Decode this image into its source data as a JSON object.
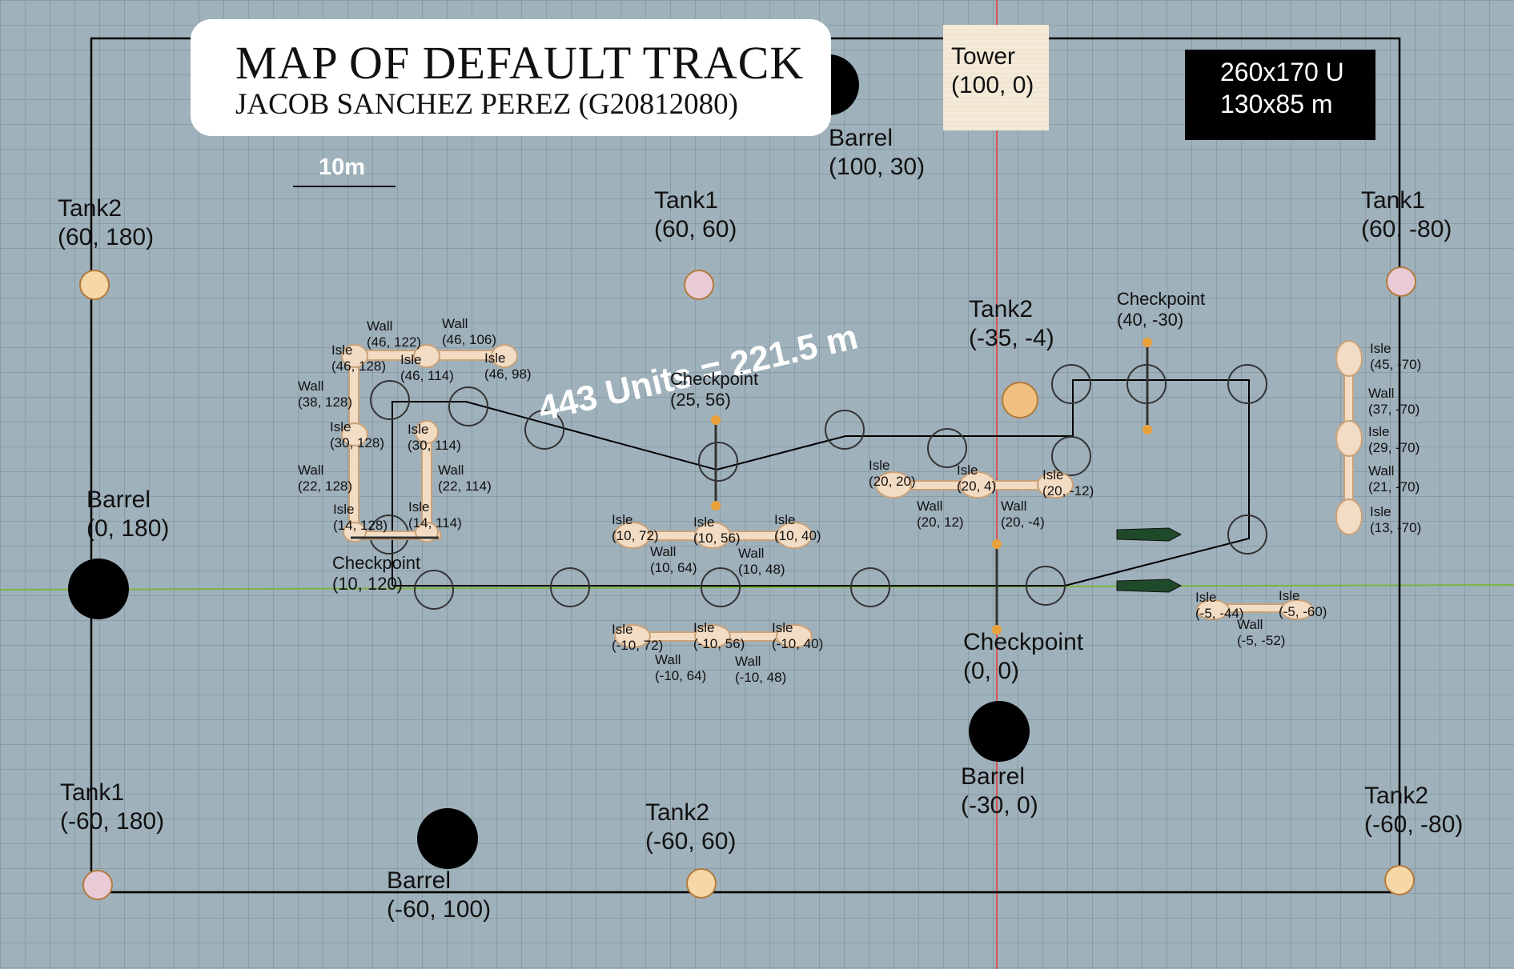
{
  "title": {
    "main": "MAP OF DEFAULT TRACK",
    "author": "JACOB SANCHEZ PEREZ (G20812080)"
  },
  "dimensions": {
    "units": "260x170 U",
    "meters": "130x85 m"
  },
  "scale_bar": "10m",
  "track_length": "443 Units = 221.5 m",
  "colors": {
    "background": "#9fb1bb",
    "grid": "#7e929c",
    "axis_red": "#d9534f",
    "axis_green": "#7cb342",
    "barrel": "#000000",
    "isle": "#f2dcc4",
    "label_white": "#ffffff"
  },
  "tower": {
    "name": "Tower",
    "coord": "(100, 0)"
  },
  "tanks": [
    {
      "name": "Tank2",
      "coord": "(60, 180)",
      "icon": "tank-icon"
    },
    {
      "name": "Tank1",
      "coord": "(60, 60)",
      "icon": "tank-icon"
    },
    {
      "name": "Tank1",
      "coord": "(60, -80)",
      "icon": "tank-icon"
    },
    {
      "name": "Tank2",
      "coord": "(-35, -4)",
      "icon": "tank-icon"
    },
    {
      "name": "Tank1",
      "coord": "(-60, 180)",
      "icon": "tank-icon"
    },
    {
      "name": "Tank2",
      "coord": "(-60, 60)",
      "icon": "tank-icon"
    },
    {
      "name": "Tank2",
      "coord": "(-60, -80)",
      "icon": "tank-icon"
    }
  ],
  "barrels": [
    {
      "name": "Barrel",
      "coord": "(100, 30)"
    },
    {
      "name": "Barrel",
      "coord": "(0, 180)"
    },
    {
      "name": "Barrel",
      "coord": "(-30, 0)"
    },
    {
      "name": "Barrel",
      "coord": "(-60, 100)"
    }
  ],
  "checkpoints": [
    {
      "name": "Checkpoint",
      "coord": "(25, 56)"
    },
    {
      "name": "Checkpoint",
      "coord": "(40, -30)"
    },
    {
      "name": "Checkpoint",
      "coord": "(10, 120)"
    },
    {
      "name": "Checkpoint",
      "coord": "(0, 0)"
    }
  ],
  "isles": [
    {
      "name": "Isle",
      "coord": "(46, 128)"
    },
    {
      "name": "Isle",
      "coord": "(46, 114)"
    },
    {
      "name": "Isle",
      "coord": "(46, 98)"
    },
    {
      "name": "Isle",
      "coord": "(30, 128)"
    },
    {
      "name": "Isle",
      "coord": "(30, 114)"
    },
    {
      "name": "Isle",
      "coord": "(14, 128)"
    },
    {
      "name": "Isle",
      "coord": "(14, 114)"
    },
    {
      "name": "Isle",
      "coord": "(10, 72)"
    },
    {
      "name": "Isle",
      "coord": "(10, 56)"
    },
    {
      "name": "Isle",
      "coord": "(10, 40)"
    },
    {
      "name": "Isle",
      "coord": "(-10, 72)"
    },
    {
      "name": "Isle",
      "coord": "(-10, 56)"
    },
    {
      "name": "Isle",
      "coord": "(-10, 40)"
    },
    {
      "name": "Isle",
      "coord": "(20, 20)"
    },
    {
      "name": "Isle",
      "coord": "(20, 4)"
    },
    {
      "name": "Isle",
      "coord": "(20, -12)"
    },
    {
      "name": "Isle",
      "coord": "(45, -70)"
    },
    {
      "name": "Isle",
      "coord": "(29, -70)"
    },
    {
      "name": "Isle",
      "coord": "(13, -70)"
    },
    {
      "name": "Isle",
      "coord": "(-5, -44)"
    },
    {
      "name": "Isle",
      "coord": "(-5, -60)"
    }
  ],
  "walls": [
    {
      "name": "Wall",
      "coord": "(46, 122)"
    },
    {
      "name": "Wall",
      "coord": "(46, 106)"
    },
    {
      "name": "Wall",
      "coord": "(38, 128)"
    },
    {
      "name": "Wall",
      "coord": "(22, 128)"
    },
    {
      "name": "Wall",
      "coord": "(22, 114)"
    },
    {
      "name": "Wall",
      "coord": "(10, 64)"
    },
    {
      "name": "Wall",
      "coord": "(10, 48)"
    },
    {
      "name": "Wall",
      "coord": "(-10, 64)"
    },
    {
      "name": "Wall",
      "coord": "(-10, 48)"
    },
    {
      "name": "Wall",
      "coord": "(20, 12)"
    },
    {
      "name": "Wall",
      "coord": "(20, -4)"
    },
    {
      "name": "Wall",
      "coord": "(37, -70)"
    },
    {
      "name": "Wall",
      "coord": "(21, -70)"
    },
    {
      "name": "Wall",
      "coord": "(-5, -52)"
    }
  ]
}
